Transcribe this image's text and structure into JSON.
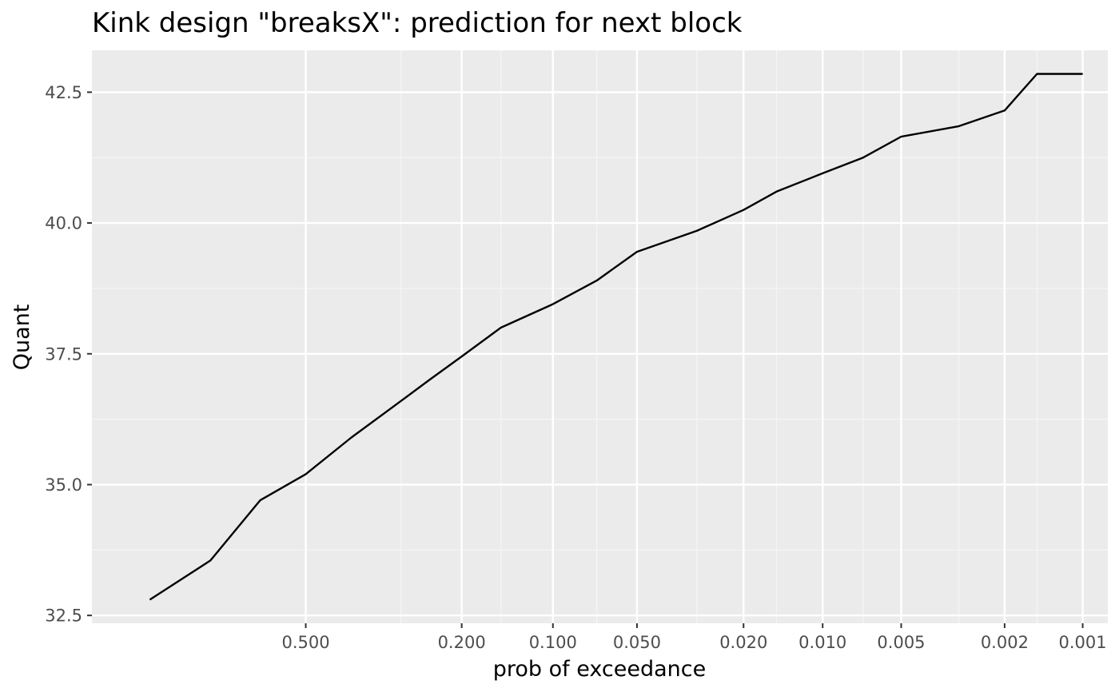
{
  "colors": {
    "panel_background": "#EBEBEB",
    "major_grid": "#FFFFFF",
    "minor_grid": "#F5F5F5",
    "line": "#000000",
    "tick": "#333333",
    "tick_label": "#4D4D4D"
  },
  "chart_data": {
    "type": "line",
    "title": "Kink design \"breaksX\": prediction for next block",
    "xlabel": "prob of exceedance",
    "ylabel": "Quant",
    "x_scale": "reversed-logit",
    "x_ticks": [
      0.5,
      0.2,
      0.1,
      0.05,
      0.02,
      0.01,
      0.005,
      0.002,
      0.001
    ],
    "x_tick_labels": [
      "0.500",
      "0.200",
      "0.100",
      "0.050",
      "0.020",
      "0.010",
      "0.005",
      "0.002",
      "0.001"
    ],
    "x_minor_ticks": [
      0.3,
      0.15,
      0.07,
      0.03,
      0.015,
      0.007,
      0.003,
      0.0015
    ],
    "xlim": [
      0.87,
      0.0008
    ],
    "y_ticks": [
      32.5,
      35.0,
      37.5,
      40.0,
      42.5
    ],
    "y_tick_labels": [
      "32.5",
      "35.0",
      "37.5",
      "40.0",
      "42.5"
    ],
    "ylim": [
      32.35,
      43.3
    ],
    "grid": true,
    "legend": "none",
    "series": [
      {
        "x": [
          0.8,
          0.7,
          0.6,
          0.5,
          0.4,
          0.3,
          0.25,
          0.2,
          0.15,
          0.1,
          0.07,
          0.05,
          0.03,
          0.02,
          0.015,
          0.01,
          0.007,
          0.005,
          0.003,
          0.002,
          0.0015,
          0.001
        ],
        "y": [
          32.8,
          33.55,
          34.7,
          35.2,
          35.9,
          36.6,
          37.0,
          37.45,
          38.0,
          38.45,
          38.9,
          39.45,
          39.85,
          40.25,
          40.6,
          40.95,
          41.25,
          41.65,
          41.85,
          42.15,
          42.85,
          42.85
        ]
      }
    ]
  }
}
